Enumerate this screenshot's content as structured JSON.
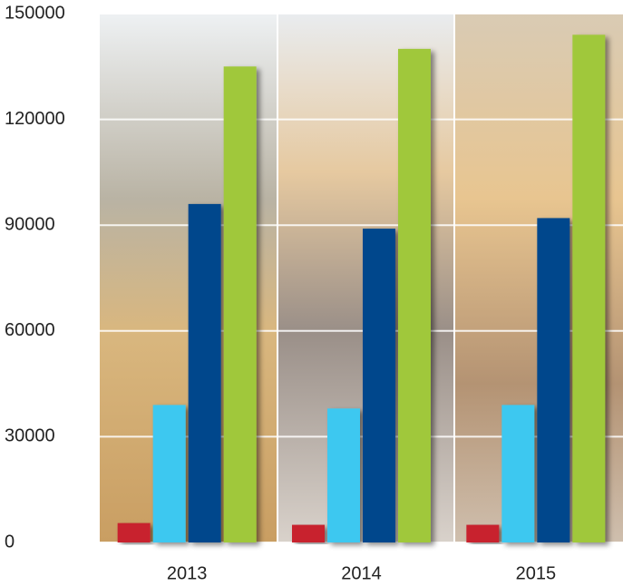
{
  "chart_data": {
    "type": "bar",
    "categories": [
      "2013",
      "2014",
      "2015"
    ],
    "series": [
      {
        "color": "#c8202f",
        "values": [
          5500,
          5000,
          5000
        ]
      },
      {
        "color": "#3ec8f0",
        "values": [
          39000,
          38000,
          39000
        ]
      },
      {
        "color": "#00468c",
        "values": [
          96000,
          89000,
          92000
        ]
      },
      {
        "color": "#a0c83a",
        "values": [
          135000,
          140000,
          144000
        ]
      }
    ],
    "ylim": [
      0,
      150000
    ],
    "yticks": [
      0,
      30000,
      60000,
      90000,
      120000,
      150000
    ],
    "grid": true
  }
}
